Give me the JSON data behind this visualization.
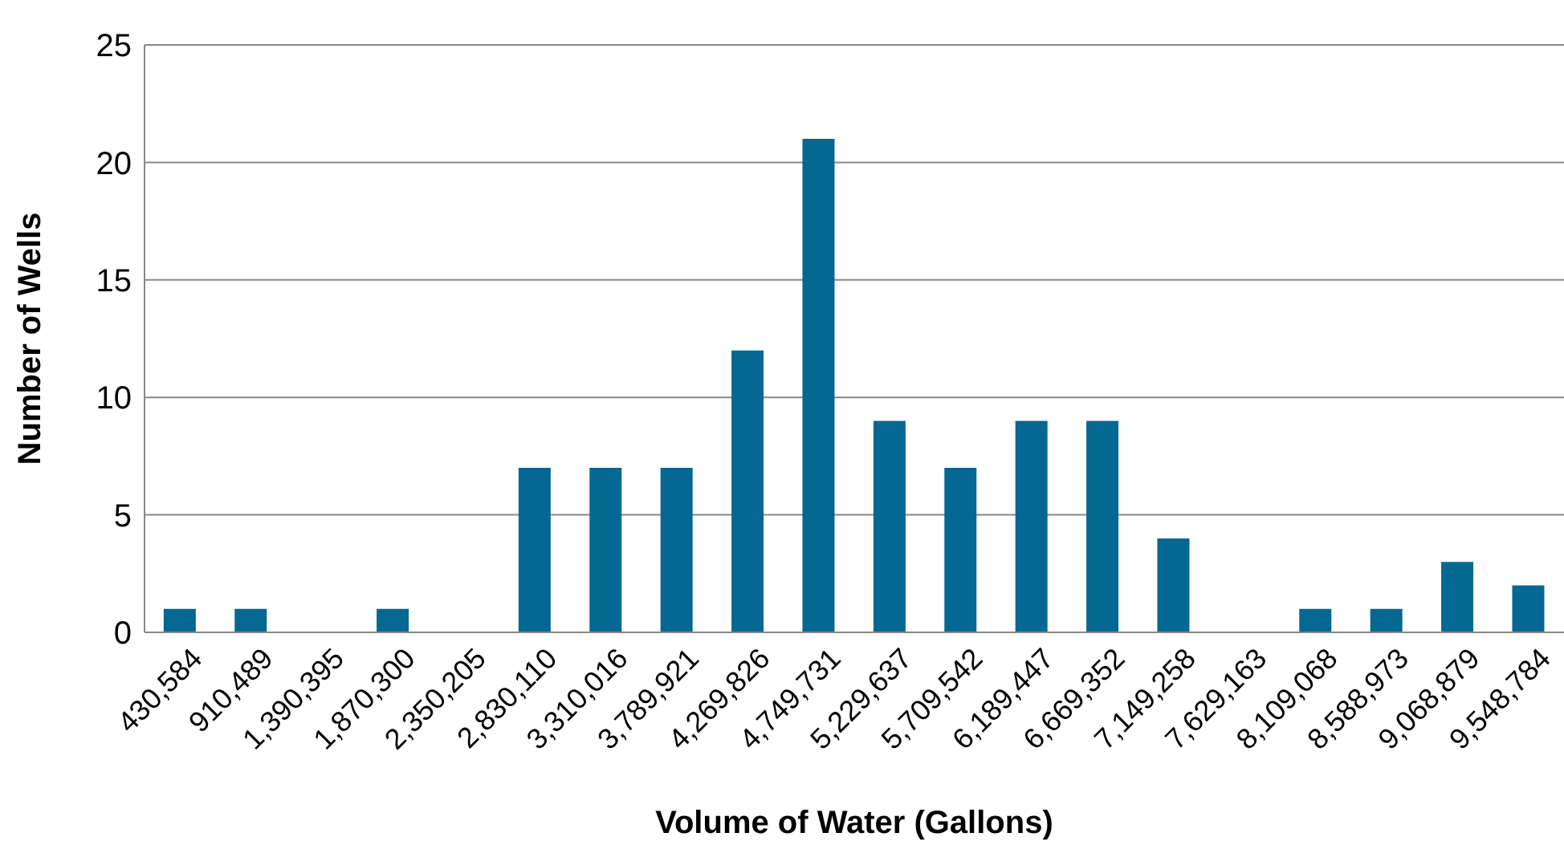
{
  "chart_data": {
    "type": "bar",
    "xlabel": "Volume of Water (Gallons)",
    "ylabel": "Number of Wells",
    "categories": [
      "430,584",
      "910,489",
      "1,390,395",
      "1,870,300",
      "2,350,205",
      "2,830,110",
      "3,310,016",
      "3,789,921",
      "4,269,826",
      "4,749,731",
      "5,229,637",
      "5,709,542",
      "6,189,447",
      "6,669,352",
      "7,149,258",
      "7,629,163",
      "8,109,068",
      "8,588,973",
      "9,068,879",
      "9,548,784"
    ],
    "values": [
      1,
      1,
      0,
      1,
      0,
      7,
      7,
      7,
      12,
      21,
      9,
      7,
      9,
      9,
      4,
      0,
      1,
      1,
      3,
      2
    ],
    "color": "#046892",
    "ylim": [
      0,
      25
    ],
    "yticks": [
      0,
      5,
      10,
      15,
      20,
      25
    ],
    "grid": "y",
    "legend": false
  }
}
